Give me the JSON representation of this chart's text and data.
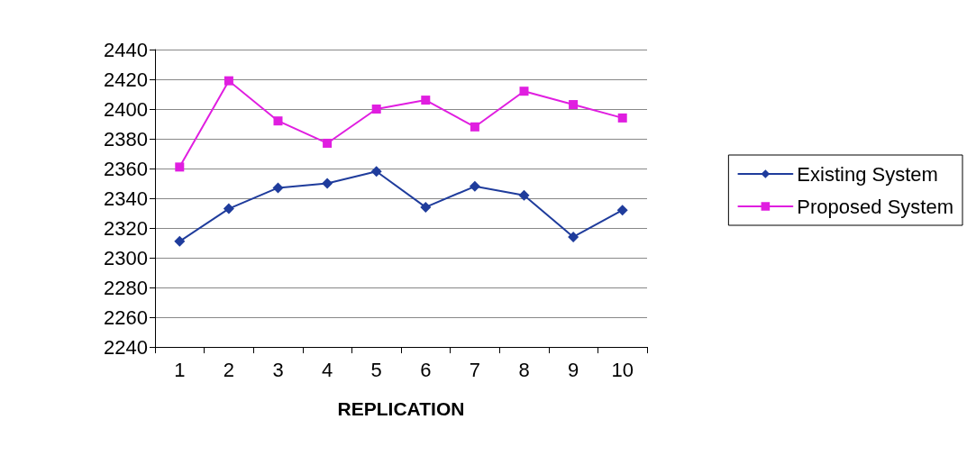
{
  "chart_data": {
    "type": "line",
    "xlabel": "REPLICATION",
    "categories": [
      "1",
      "2",
      "3",
      "4",
      "5",
      "6",
      "7",
      "8",
      "9",
      "10"
    ],
    "series": [
      {
        "name": "Existing System",
        "color": "#1f3c9c",
        "marker": "diamond",
        "values": [
          2311,
          2333,
          2347,
          2350,
          2358,
          2334,
          2348,
          2342,
          2314,
          2332
        ]
      },
      {
        "name": "Proposed System",
        "color": "#e01ee0",
        "marker": "square",
        "values": [
          2361,
          2419,
          2392,
          2377,
          2400,
          2406,
          2388,
          2412,
          2403,
          2394
        ]
      }
    ],
    "ylim": [
      2240,
      2440
    ],
    "yticks": [
      2240,
      2260,
      2280,
      2300,
      2320,
      2340,
      2360,
      2380,
      2400,
      2420,
      2440
    ],
    "grid": "y",
    "legend": "right"
  }
}
